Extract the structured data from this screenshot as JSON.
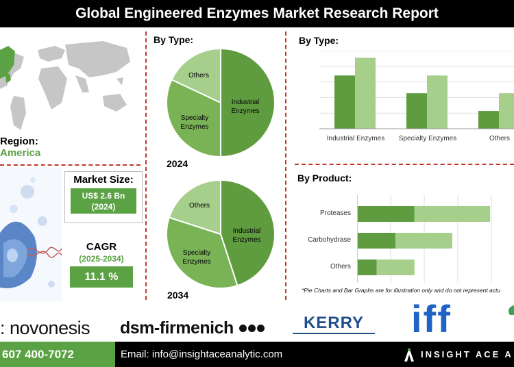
{
  "header": {
    "title": "Global Engineered Enzymes Market Research Report"
  },
  "region": {
    "label": "Region:",
    "value": "America"
  },
  "market_size": {
    "label": "Market Size:",
    "value": "US$ 2.6 Bn",
    "year": "(2024)"
  },
  "cagr": {
    "label": "CAGR",
    "period": "(2025-2034)",
    "value": "11.1 %"
  },
  "pie_section": {
    "title": "By Type:"
  },
  "chart_data": [
    {
      "type": "pie",
      "year": "2024",
      "slices": [
        {
          "label": "Industrial Enzymes",
          "value": 50,
          "color": "#5f9b3f"
        },
        {
          "label": "Specialty Enzymes",
          "value": 32,
          "color": "#79b356"
        },
        {
          "label": "Others",
          "value": 18,
          "color": "#a6cf8c"
        }
      ]
    },
    {
      "type": "pie",
      "year": "2034",
      "slices": [
        {
          "label": "Industrial Enzymes",
          "value": 45,
          "color": "#5f9b3f"
        },
        {
          "label": "Specialty Enzymes",
          "value": 35,
          "color": "#79b356"
        },
        {
          "label": "Others",
          "value": 20,
          "color": "#a6cf8c"
        }
      ]
    },
    {
      "type": "bar",
      "title": "By Type:",
      "categories": [
        "Industrial Enzymes",
        "Specialty Enzymes",
        "Others"
      ],
      "series": [
        {
          "values": [
            3,
            2,
            1
          ],
          "color": "#5f9b3f"
        },
        {
          "values": [
            4,
            3,
            2
          ],
          "color": "#a6cf8c"
        }
      ],
      "ylim": [
        0,
        4.4
      ],
      "grid": true
    },
    {
      "type": "bar",
      "orientation": "horizontal",
      "stacked": true,
      "title": "By Product:",
      "categories": [
        "Proteases",
        "Carbohydrase",
        "Others"
      ],
      "series": [
        {
          "values": [
            3,
            2,
            1
          ],
          "color": "#5f9b3f"
        },
        {
          "values": [
            4,
            3,
            2
          ],
          "color": "#a6cf8c"
        }
      ],
      "xlim": [
        0,
        8.3
      ],
      "grid": true
    }
  ],
  "note": "*Pie Charts and Bar Graphs are for illustration only and do not represent actu",
  "logos": {
    "novonesis": ": novonesis",
    "dsm": "dsm-firmenich",
    "kerry": "KERRY",
    "iff": "iff"
  },
  "footer": {
    "phone": "607 400-7072",
    "email": "Email: info@insightaceanalytic.com",
    "brand": "INSIGHT ACE A"
  }
}
